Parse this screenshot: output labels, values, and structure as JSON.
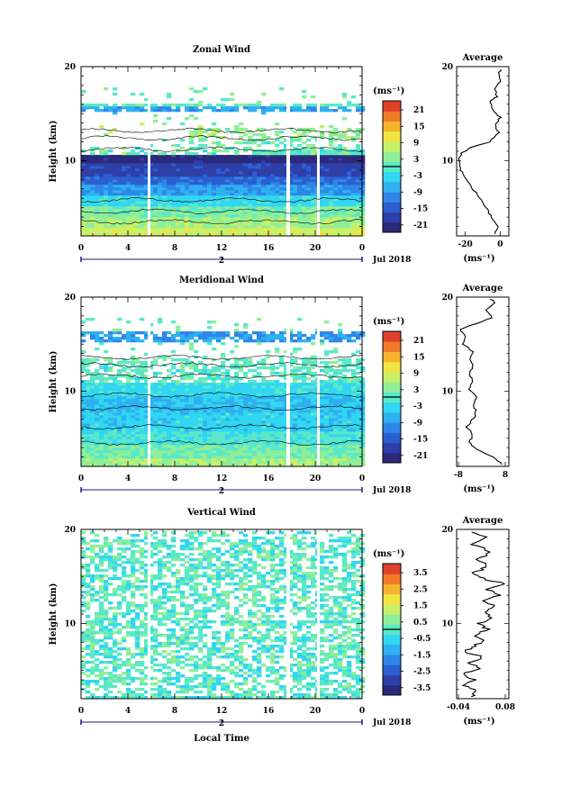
{
  "chart_data": [
    {
      "type": "heatmap",
      "title": "Zonal Wind",
      "ylabel": "Height (km)",
      "y_ticks": [
        "20",
        "10"
      ],
      "x_ticks": [
        "0",
        "4",
        "8",
        "12",
        "16",
        "20",
        "0"
      ],
      "date_marker": "2",
      "date_label": "Jul 2018",
      "colorbar_unit": "(ms⁻¹)",
      "colorbar_ticks": [
        "21",
        "15",
        "9",
        "3",
        "-3",
        "-9",
        "-15",
        "-21"
      ],
      "profile": {
        "title": "Average",
        "x_ticks": [
          "-20",
          "0"
        ],
        "y_ticks": [
          "20",
          "10"
        ],
        "xlabel": "(ms⁻¹)",
        "xlim": [
          -25,
          5
        ],
        "ylim": [
          2,
          20
        ],
        "points": [
          [
            -3,
            2.2
          ],
          [
            -1,
            3.0
          ],
          [
            -4,
            3.8
          ],
          [
            -7,
            4.6
          ],
          [
            -10,
            5.6
          ],
          [
            -14,
            6.6
          ],
          [
            -18,
            7.6
          ],
          [
            -21,
            8.4
          ],
          [
            -23,
            9.2
          ],
          [
            -24,
            10.1
          ],
          [
            -22,
            10.8
          ],
          [
            -17,
            11.4
          ],
          [
            -6,
            12.0
          ],
          [
            -1,
            13.0
          ],
          [
            -3,
            13.8
          ],
          [
            0,
            14.6
          ],
          [
            -4,
            15.4
          ],
          [
            -6,
            16.2
          ],
          [
            -2,
            16.8
          ],
          [
            -3,
            17.6
          ],
          [
            0,
            18.4
          ],
          [
            -1,
            19.2
          ],
          [
            1,
            19.9
          ]
        ]
      }
    },
    {
      "type": "heatmap",
      "title": "Meridional Wind",
      "ylabel": "Height (km)",
      "y_ticks": [
        "20",
        "10"
      ],
      "x_ticks": [
        "0",
        "4",
        "8",
        "12",
        "16",
        "20",
        "0"
      ],
      "date_marker": "2",
      "date_label": "Jul 2018",
      "colorbar_unit": "(ms⁻¹)",
      "colorbar_ticks": [
        "21",
        "15",
        "9",
        "3",
        "-3",
        "-9",
        "-15",
        "-21"
      ],
      "profile": {
        "title": "Average",
        "x_ticks": [
          "-8",
          "8"
        ],
        "y_ticks": [
          "20",
          "10"
        ],
        "xlabel": "(ms⁻¹)",
        "xlim": [
          -8,
          8
        ],
        "ylim": [
          2,
          20
        ],
        "points": [
          [
            6,
            2.2
          ],
          [
            3,
            3.0
          ],
          [
            -2,
            3.8
          ],
          [
            -4,
            4.6
          ],
          [
            -3,
            5.4
          ],
          [
            -5,
            6.2
          ],
          [
            -3,
            7.0
          ],
          [
            -2,
            7.8
          ],
          [
            -3,
            8.6
          ],
          [
            -2,
            9.4
          ],
          [
            -4,
            10.2
          ],
          [
            -3,
            11.0
          ],
          [
            -4,
            11.8
          ],
          [
            -3,
            12.6
          ],
          [
            -4,
            13.4
          ],
          [
            -3,
            14.2
          ],
          [
            -6,
            15.0
          ],
          [
            -5,
            15.8
          ],
          [
            -7,
            16.6
          ],
          [
            -2,
            17.2
          ],
          [
            3,
            17.8
          ],
          [
            1,
            18.6
          ],
          [
            4,
            19.4
          ],
          [
            2,
            19.9
          ]
        ]
      }
    },
    {
      "type": "heatmap",
      "title": "Vertical Wind",
      "ylabel": "Height (km)",
      "xlabel": "Local Time",
      "y_ticks": [
        "20",
        "10"
      ],
      "x_ticks": [
        "0",
        "4",
        "8",
        "12",
        "16",
        "20",
        "0"
      ],
      "date_marker": "2",
      "date_label": "Jul 2018",
      "colorbar_unit": "(ms⁻¹)",
      "colorbar_ticks": [
        "3.5",
        "2.5",
        "1.5",
        "0.5",
        "-0.5",
        "-1.5",
        "-2.5",
        "-3.5"
      ],
      "profile": {
        "title": "Average",
        "x_ticks": [
          "-0.04",
          "0.08"
        ],
        "y_ticks": [
          "20",
          "10"
        ],
        "xlabel": "(ms⁻¹)",
        "xlim": [
          -0.04,
          0.08
        ],
        "ylim": [
          2,
          20
        ],
        "points": [
          [
            -0.01,
            2.2
          ],
          [
            0.01,
            2.8
          ],
          [
            -0.02,
            3.4
          ],
          [
            0.0,
            4.0
          ],
          [
            -0.03,
            4.6
          ],
          [
            0.01,
            5.2
          ],
          [
            -0.01,
            5.8
          ],
          [
            0.02,
            6.4
          ],
          [
            -0.02,
            7.0
          ],
          [
            0.0,
            7.6
          ],
          [
            0.02,
            8.2
          ],
          [
            0.0,
            8.8
          ],
          [
            0.03,
            9.4
          ],
          [
            0.01,
            10.0
          ],
          [
            0.04,
            10.6
          ],
          [
            0.02,
            11.2
          ],
          [
            0.05,
            11.8
          ],
          [
            0.02,
            12.4
          ],
          [
            0.06,
            13.0
          ],
          [
            0.03,
            13.6
          ],
          [
            0.07,
            14.2
          ],
          [
            0.02,
            14.8
          ],
          [
            0.0,
            15.4
          ],
          [
            0.03,
            16.0
          ],
          [
            0.01,
            16.8
          ],
          [
            0.04,
            17.6
          ],
          [
            0.0,
            18.4
          ],
          [
            0.03,
            19.2
          ],
          [
            -0.01,
            19.9
          ]
        ]
      }
    }
  ]
}
